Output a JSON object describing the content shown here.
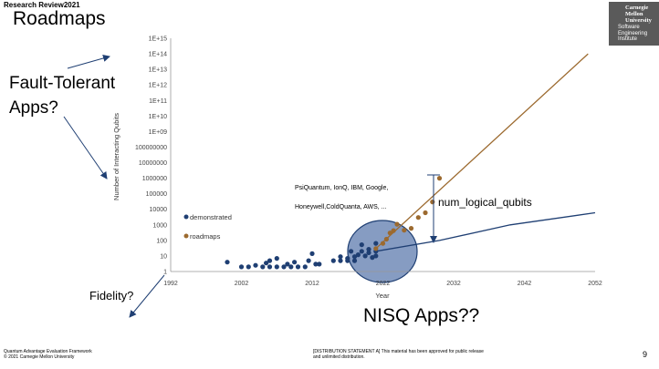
{
  "header": {
    "review": "Research Review2021",
    "title": "Roadmaps"
  },
  "logo": {
    "lines_serif": [
      "Carnegie",
      "Mellon",
      "University"
    ],
    "lines_sans": [
      "Software",
      "Engineering",
      "Institute"
    ]
  },
  "annotations": {
    "fault_tolerant": [
      "Fault-Tolerant",
      "Apps?"
    ],
    "fidelity": "Fidelity?",
    "nisq": "NISQ Apps??",
    "num_logical": "num_logical_qubits",
    "companies": [
      "PsiQuantum, IonQ, IBM, Google,",
      "Honeywell,ColdQuanta, AWS, ..."
    ]
  },
  "footer": {
    "left": [
      "Quantum Advantage Evaluation Framework",
      "© 2021 Carnegie Mellon University"
    ],
    "right": [
      "[DISTRIBUTION STATEMENT A] This material has been approved for public release",
      "and unlimited distribution."
    ],
    "page": "9"
  },
  "colors": {
    "demonstrated": "#1f3f73",
    "roadmaps": "#9c6a2f",
    "ellipse_fill": "#7f97bf",
    "ellipse_stroke": "#1f3f73"
  },
  "chart_data": {
    "type": "scatter",
    "xlabel": "Year",
    "ylabel": "Number of Interacting Qubits",
    "xlim": [
      1992,
      2052
    ],
    "xticks": [
      "1992",
      "2002",
      "2012",
      "2022",
      "2032",
      "2042",
      "2052"
    ],
    "y_scale": "log",
    "ylim_exp": [
      0,
      15
    ],
    "yticks": [
      "1",
      "10",
      "100",
      "1000",
      "10000",
      "100000",
      "1000000",
      "10000000",
      "100000000",
      "1E+09",
      "1E+10",
      "1E+11",
      "1E+12",
      "1E+13",
      "1E+14",
      "1E+15"
    ],
    "legend": [
      "demonstrated",
      "roadmaps"
    ],
    "grid": false,
    "series": [
      {
        "name": "demonstrated",
        "points": [
          [
            2000,
            4
          ],
          [
            2002,
            2
          ],
          [
            2003,
            2
          ],
          [
            2004,
            2.5
          ],
          [
            2005,
            2
          ],
          [
            2005.5,
            3.5
          ],
          [
            2006,
            2
          ],
          [
            2006,
            5
          ],
          [
            2007,
            2
          ],
          [
            2007,
            7
          ],
          [
            2008,
            2
          ],
          [
            2008.5,
            3
          ],
          [
            2009,
            2
          ],
          [
            2009.5,
            4
          ],
          [
            2010,
            2
          ],
          [
            2011,
            2
          ],
          [
            2011.5,
            5
          ],
          [
            2012,
            14
          ],
          [
            2012.5,
            3
          ],
          [
            2013,
            3
          ],
          [
            2015,
            5
          ],
          [
            2016,
            5
          ],
          [
            2016,
            9
          ],
          [
            2017,
            5
          ],
          [
            2017,
            7
          ],
          [
            2017.5,
            20
          ],
          [
            2018,
            5
          ],
          [
            2018,
            9
          ],
          [
            2018.5,
            12
          ],
          [
            2019,
            20
          ],
          [
            2019,
            53
          ],
          [
            2019.5,
            10
          ],
          [
            2020,
            16
          ],
          [
            2020,
            27
          ],
          [
            2020.5,
            8
          ],
          [
            2021,
            65
          ],
          [
            2021,
            20
          ],
          [
            2021,
            10
          ]
        ]
      },
      {
        "name": "roadmaps",
        "points": [
          [
            2021,
            30
          ],
          [
            2022,
            65
          ],
          [
            2022.5,
            120
          ],
          [
            2023,
            300
          ],
          [
            2023.5,
            430
          ],
          [
            2024,
            1100
          ],
          [
            2025,
            450
          ],
          [
            2026,
            600
          ],
          [
            2027,
            3000
          ],
          [
            2028,
            6000
          ],
          [
            2029,
            30000
          ],
          [
            2030,
            1000000
          ]
        ]
      }
    ],
    "trend_lines": [
      {
        "name": "roadmaps-trend",
        "points": [
          [
            2021,
            30
          ],
          [
            2051,
            100000000000000
          ]
        ]
      },
      {
        "name": "demonstrated-trend",
        "points": [
          [
            2021,
            20
          ],
          [
            2030,
            100
          ],
          [
            2040,
            1000
          ],
          [
            2052,
            6000
          ]
        ]
      }
    ]
  }
}
